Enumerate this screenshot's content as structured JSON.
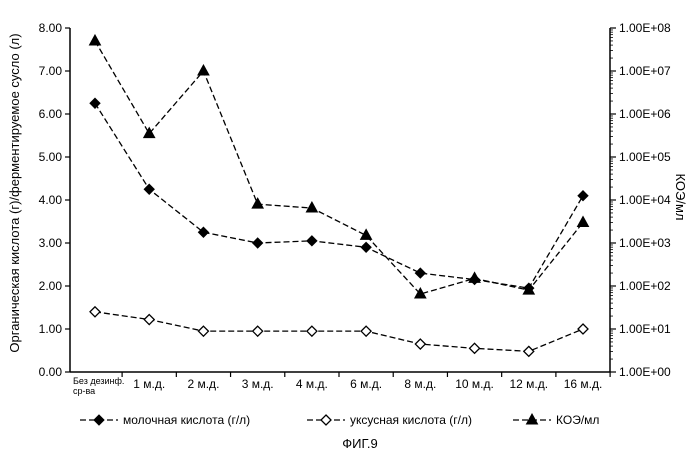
{
  "figure_label": "ФИГ.9",
  "chart_data": {
    "type": "line",
    "categories": [
      "Без дезинф. ср-ва",
      "1 м.д.",
      "2 м.д.",
      "3 м.д.",
      "4 м.д.",
      "6 м.д.",
      "8 м.д.",
      "10 м.д.",
      "12 м.д.",
      "16 м.д."
    ],
    "left_axis": {
      "label": "Органическая кислота (г)/ферментируемое сусло (л)",
      "ylim": [
        0,
        8
      ],
      "ticks": [
        "0.00",
        "1.00",
        "2.00",
        "3.00",
        "4.00",
        "5.00",
        "6.00",
        "7.00",
        "8.00"
      ]
    },
    "right_axis": {
      "label": "КОЭ/мл",
      "scale": "log",
      "ylim": [
        1,
        100000000
      ],
      "ticks": [
        "1.00E+00",
        "1.00E+01",
        "1.00E+02",
        "1.00E+03",
        "1.00E+04",
        "1.00E+05",
        "1.00E+06",
        "1.00E+07",
        "1.00E+08"
      ]
    },
    "series": [
      {
        "name": "молочная кислота (г/л)",
        "axis": "left",
        "marker": "filled-diamond",
        "values": [
          6.25,
          4.25,
          3.25,
          3.0,
          3.05,
          2.9,
          2.3,
          2.15,
          1.95,
          4.1
        ]
      },
      {
        "name": "уксусная кислота (г/л)",
        "axis": "left",
        "marker": "open-diamond",
        "values": [
          1.4,
          1.22,
          0.95,
          0.95,
          0.95,
          0.95,
          0.65,
          0.55,
          0.48,
          1.0
        ]
      },
      {
        "name": "КОЭ/мл",
        "axis": "right",
        "marker": "filled-triangle",
        "values": [
          50000000,
          350000,
          10000000,
          8000,
          6500,
          1500,
          65,
          150,
          80,
          3000
        ]
      }
    ],
    "legend_position": "bottom",
    "grid": false
  }
}
